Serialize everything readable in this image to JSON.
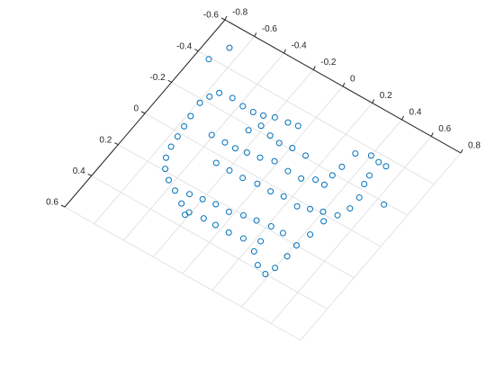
{
  "chart_data": {
    "type": "scatter",
    "color": "#0072bd",
    "grid": true,
    "xlim": [
      -0.8,
      0.8
    ],
    "xticks": [
      -0.8,
      -0.6,
      -0.4,
      -0.2,
      0,
      0.2,
      0.4,
      0.6,
      0.8
    ],
    "ylim": [
      -0.6,
      0.6
    ],
    "yticks": [
      -0.6,
      -0.4,
      -0.2,
      0,
      0.2,
      0.4,
      0.6
    ],
    "x": [
      -0.54,
      -0.57,
      -0.59,
      -0.58,
      -0.57,
      -0.56,
      -0.55,
      -0.53,
      -0.49,
      -0.43,
      -0.36,
      -0.28,
      -0.21,
      -0.46,
      -0.38,
      -0.31,
      -0.25,
      -0.19,
      -0.11,
      -0.05,
      -0.41,
      -0.32,
      -0.25,
      -0.18,
      -0.1,
      -0.02,
      0.08,
      0.17,
      0.24,
      -0.28,
      -0.19,
      -0.1,
      -0.01,
      0.08,
      0.16,
      0.26,
      0.33,
      -0.28,
      -0.2,
      -0.12,
      -0.03,
      0.05,
      0.13,
      0.22,
      0.3,
      -0.22,
      -0.12,
      -0.04,
      0.05,
      0.14,
      0.4,
      0.48,
      0.51,
      0.51,
      0.48,
      0.47,
      0.46,
      0.51,
      0.4,
      0.32,
      0.31,
      0.3,
      0.3,
      0.44,
      0.43,
      0.41,
      0.41,
      0.4,
      0.38,
      0.31,
      0.24,
      0.23,
      -0.67,
      -0.72,
      0.65,
      -0.14,
      -0.07,
      0.01,
      0.1,
      -0.22,
      -0.26
    ],
    "y": [
      -0.27,
      -0.23,
      -0.18,
      -0.1,
      -0.04,
      0.02,
      0.08,
      0.14,
      0.19,
      0.23,
      0.26,
      0.3,
      0.32,
      -0.28,
      -0.27,
      -0.27,
      -0.28,
      -0.3,
      -0.31,
      -0.32,
      -0.07,
      -0.07,
      -0.07,
      -0.08,
      -0.09,
      -0.11,
      -0.1,
      -0.1,
      -0.13,
      0.04,
      0.04,
      0.04,
      0.03,
      0.03,
      0.02,
      0.03,
      0.01,
      0.24,
      0.23,
      0.22,
      0.22,
      0.2,
      0.19,
      0.18,
      0.18,
      0.34,
      0.31,
      0.31,
      0.31,
      0.3,
      -0.01,
      -0.03,
      -0.09,
      -0.16,
      -0.23,
      -0.28,
      -0.36,
      -0.36,
      -0.37,
      -0.34,
      -0.25,
      -0.19,
      -0.13,
      0.03,
      0.12,
      0.2,
      0.27,
      0.35,
      0.4,
      0.38,
      0.33,
      0.27,
      -0.49,
      -0.39,
      -0.19,
      -0.21,
      -0.2,
      -0.21,
      -0.21,
      -0.23,
      -0.18
    ]
  }
}
